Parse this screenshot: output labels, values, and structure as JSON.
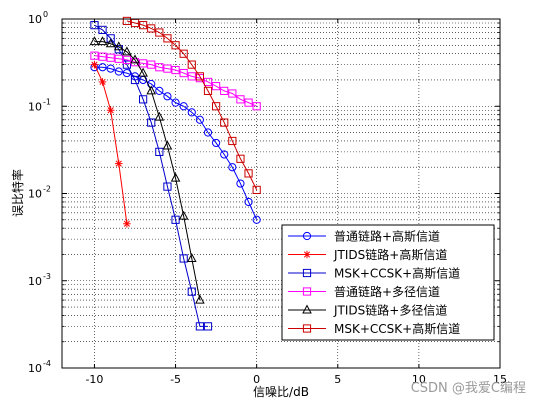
{
  "chart_data": {
    "type": "line",
    "title": "",
    "xlabel": "信噪比/dB",
    "ylabel": "误比特率",
    "xlim": [
      -12,
      15
    ],
    "ylim_log10": [
      -4,
      0
    ],
    "yscale": "log",
    "grid": true,
    "x_ticks": [
      "-10",
      "-5",
      "0",
      "5",
      "10",
      "15"
    ],
    "y_ticks": [
      {
        "base": "10",
        "exp": "0"
      },
      {
        "base": "10",
        "exp": "-1"
      },
      {
        "base": "10",
        "exp": "-2"
      },
      {
        "base": "10",
        "exp": "-3"
      },
      {
        "base": "10",
        "exp": "-4"
      }
    ],
    "legend_position": "bottom-right",
    "series": [
      {
        "name": "普通链路+高斯信道",
        "color": "#0000ff",
        "marker": "circle",
        "x": [
          -10,
          -9.5,
          -9,
          -8.5,
          -8,
          -7.5,
          -7,
          -6.5,
          -6,
          -5.5,
          -5,
          -4.5,
          -4,
          -3.5,
          -3,
          -2.5,
          -2,
          -1.5,
          -1,
          -0.5,
          0
        ],
        "y": [
          0.28,
          0.28,
          0.27,
          0.25,
          0.24,
          0.22,
          0.2,
          0.18,
          0.15,
          0.13,
          0.11,
          0.1,
          0.085,
          0.07,
          0.05,
          0.038,
          0.028,
          0.02,
          0.013,
          0.008,
          0.005
        ]
      },
      {
        "name": "JTIDS链路+高斯信道",
        "color": "#ff0000",
        "marker": "star",
        "x": [
          -10,
          -9.5,
          -9,
          -8.5,
          -8
        ],
        "y": [
          0.3,
          0.19,
          0.09,
          0.022,
          0.0045
        ]
      },
      {
        "name": "MSK+CCSK+高斯信道",
        "color": "#0000cc",
        "marker": "square",
        "x": [
          -10,
          -9.5,
          -9,
          -8.5,
          -8,
          -7.5,
          -7,
          -6.5,
          -6,
          -5.5,
          -5,
          -4.5,
          -4,
          -3.5,
          -3
        ],
        "y": [
          0.85,
          0.75,
          0.6,
          0.45,
          0.3,
          0.2,
          0.12,
          0.065,
          0.03,
          0.012,
          0.005,
          0.0018,
          0.00075,
          0.0003,
          0.0003
        ]
      },
      {
        "name": "普通链路+多径信道",
        "color": "#ff00ff",
        "marker": "square",
        "x": [
          -10,
          -9.5,
          -9,
          -8.5,
          -8,
          -7.5,
          -7,
          -6.5,
          -6,
          -5.5,
          -5,
          -4.5,
          -4,
          -3.5,
          -3,
          -2.5,
          -2,
          -1.5,
          -1,
          -0.5,
          0
        ],
        "y": [
          0.38,
          0.37,
          0.36,
          0.35,
          0.34,
          0.32,
          0.31,
          0.3,
          0.28,
          0.27,
          0.26,
          0.24,
          0.22,
          0.21,
          0.19,
          0.17,
          0.15,
          0.14,
          0.12,
          0.11,
          0.1
        ]
      },
      {
        "name": "JTIDS链路+多径信道",
        "color": "#000000",
        "marker": "triangle",
        "x": [
          -10,
          -9.5,
          -9,
          -8.5,
          -8,
          -7.5,
          -7,
          -6.5,
          -6,
          -5.5,
          -5,
          -4.5,
          -4,
          -3.5
        ],
        "y": [
          0.55,
          0.55,
          0.52,
          0.48,
          0.42,
          0.34,
          0.24,
          0.15,
          0.075,
          0.035,
          0.015,
          0.0055,
          0.0018,
          0.0006
        ]
      },
      {
        "name": "MSK+CCSK+高斯信道",
        "color": "#cc0000",
        "marker": "square",
        "x": [
          -8,
          -7.5,
          -7,
          -6.5,
          -6,
          -5.5,
          -5,
          -4.5,
          -4,
          -3.5,
          -3,
          -2.5,
          -2,
          -1.5,
          -1,
          -0.5,
          0
        ],
        "y": [
          0.95,
          0.9,
          0.85,
          0.78,
          0.7,
          0.6,
          0.5,
          0.4,
          0.3,
          0.22,
          0.15,
          0.1,
          0.065,
          0.04,
          0.025,
          0.017,
          0.011
        ]
      }
    ]
  },
  "watermark": "CSDN @我爱C编程"
}
